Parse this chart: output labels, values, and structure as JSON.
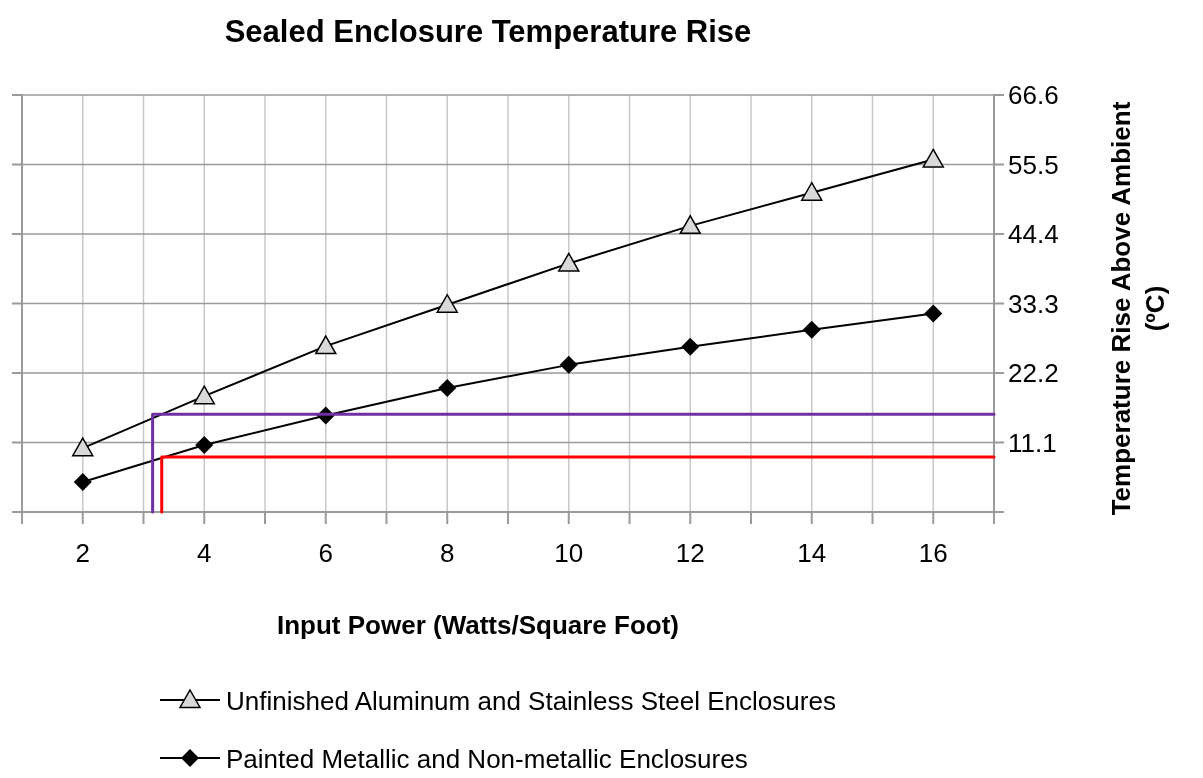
{
  "chart_data": {
    "type": "line",
    "title": "Sealed Enclosure Temperature Rise",
    "xlabel": "Input Power (Watts/Square Foot)",
    "ylabel": "Temperature Rise Above Ambient (ºC)",
    "x": [
      2,
      4,
      6,
      8,
      10,
      12,
      14,
      16
    ],
    "series": [
      {
        "name": "Unfinished Aluminum and Stainless Steel Enclosures",
        "color": "#000000",
        "marker": "triangle",
        "values": [
          10.2,
          18.5,
          26.5,
          33.1,
          39.7,
          45.7,
          51.0,
          56.3
        ]
      },
      {
        "name": "Painted Metallic and Non-metallic Enclosures",
        "color": "#000000",
        "marker": "diamond",
        "values": [
          4.8,
          10.7,
          15.4,
          19.8,
          23.5,
          26.4,
          29.1,
          31.7
        ]
      },
      {
        "type": "line",
        "color": "#7030a0",
        "marker": "none",
        "x": [
          3.15,
          3.15,
          17
        ],
        "values": [
          0,
          15.6,
          15.6
        ]
      },
      {
        "type": "line",
        "color": "#ff0000",
        "marker": "none",
        "x": [
          3.3,
          3.3,
          17
        ],
        "values": [
          0,
          8.8,
          8.8
        ]
      }
    ],
    "xlim": [
      1,
      17
    ],
    "xticks": [
      {
        "value": 1,
        "label": null
      },
      2,
      {
        "value": 3,
        "label": null
      },
      4,
      {
        "value": 5,
        "label": null
      },
      6,
      {
        "value": 7,
        "label": null
      },
      8,
      {
        "value": 9,
        "label": null
      },
      10,
      {
        "value": 11,
        "label": null
      },
      12,
      {
        "value": 13,
        "label": null
      },
      14,
      {
        "value": 15,
        "label": null
      },
      16,
      {
        "value": 17,
        "label": null
      }
    ],
    "ylim": [
      0,
      66.6
    ],
    "yticks": [
      {
        "value": 0,
        "label": null
      },
      11.1,
      22.2,
      33.3,
      44.4,
      55.5,
      66.6
    ],
    "grid": true,
    "legend": "bottom"
  }
}
